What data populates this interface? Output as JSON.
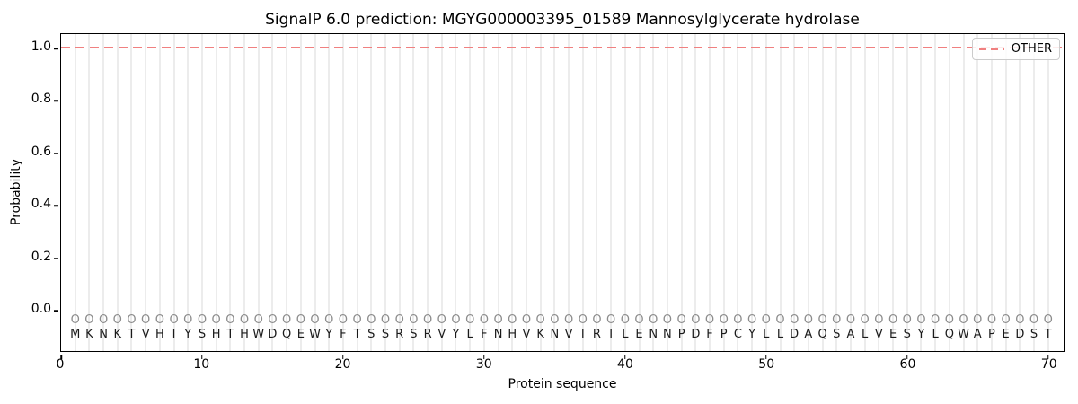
{
  "title": "SignalP 6.0 prediction: MGYG000003395_01589 Mannosylglycerate hydrolase",
  "legend": {
    "label": "OTHER",
    "line_color": "#f08080",
    "line_style": "dashed"
  },
  "axes": {
    "xlabel": "Protein sequence",
    "ylabel": "Probability",
    "x_ticks": [
      0,
      10,
      20,
      30,
      40,
      50,
      60,
      70
    ],
    "y_ticks": [
      "0.0",
      "0.2",
      "0.4",
      "0.6",
      "0.8",
      "1.0"
    ]
  },
  "chart_data": {
    "type": "line",
    "title": "SignalP 6.0 prediction: MGYG000003395_01589 Mannosylglycerate hydrolase",
    "xlabel": "Protein sequence",
    "ylabel": "Probability",
    "xlim": [
      0,
      71.1
    ],
    "ylim": [
      -0.16,
      1.06
    ],
    "x_ticks": [
      0,
      10,
      20,
      30,
      40,
      50,
      60,
      70
    ],
    "y_ticks": [
      0.0,
      0.2,
      0.4,
      0.6,
      0.8,
      1.0
    ],
    "grid": "light vertical gridline at every residue position 1-70",
    "legend_position": "upper right",
    "series": [
      {
        "name": "OTHER",
        "color": "#f08080",
        "style": "dashed",
        "x_range": [
          1,
          70
        ],
        "constant_value": 1.0,
        "note": "flat dashed line, probability 1.0 at every residue"
      }
    ],
    "sequence": "MKNKTVHIYSHTHWDQEWYFTSSRSRVYLFNHVKNVIRILENNPDFPCYLLDAQSALVESYLQWAPEDST",
    "per_residue_marker": "O",
    "marker_row_y": -0.04,
    "letter_row_y": -0.1
  },
  "colors": {
    "background": "#ffffff",
    "spine": "#000000",
    "grid": "#ececec",
    "dash_line": "#f08080",
    "marker": "#8c8c8c",
    "letter": "#1a1a1a"
  }
}
